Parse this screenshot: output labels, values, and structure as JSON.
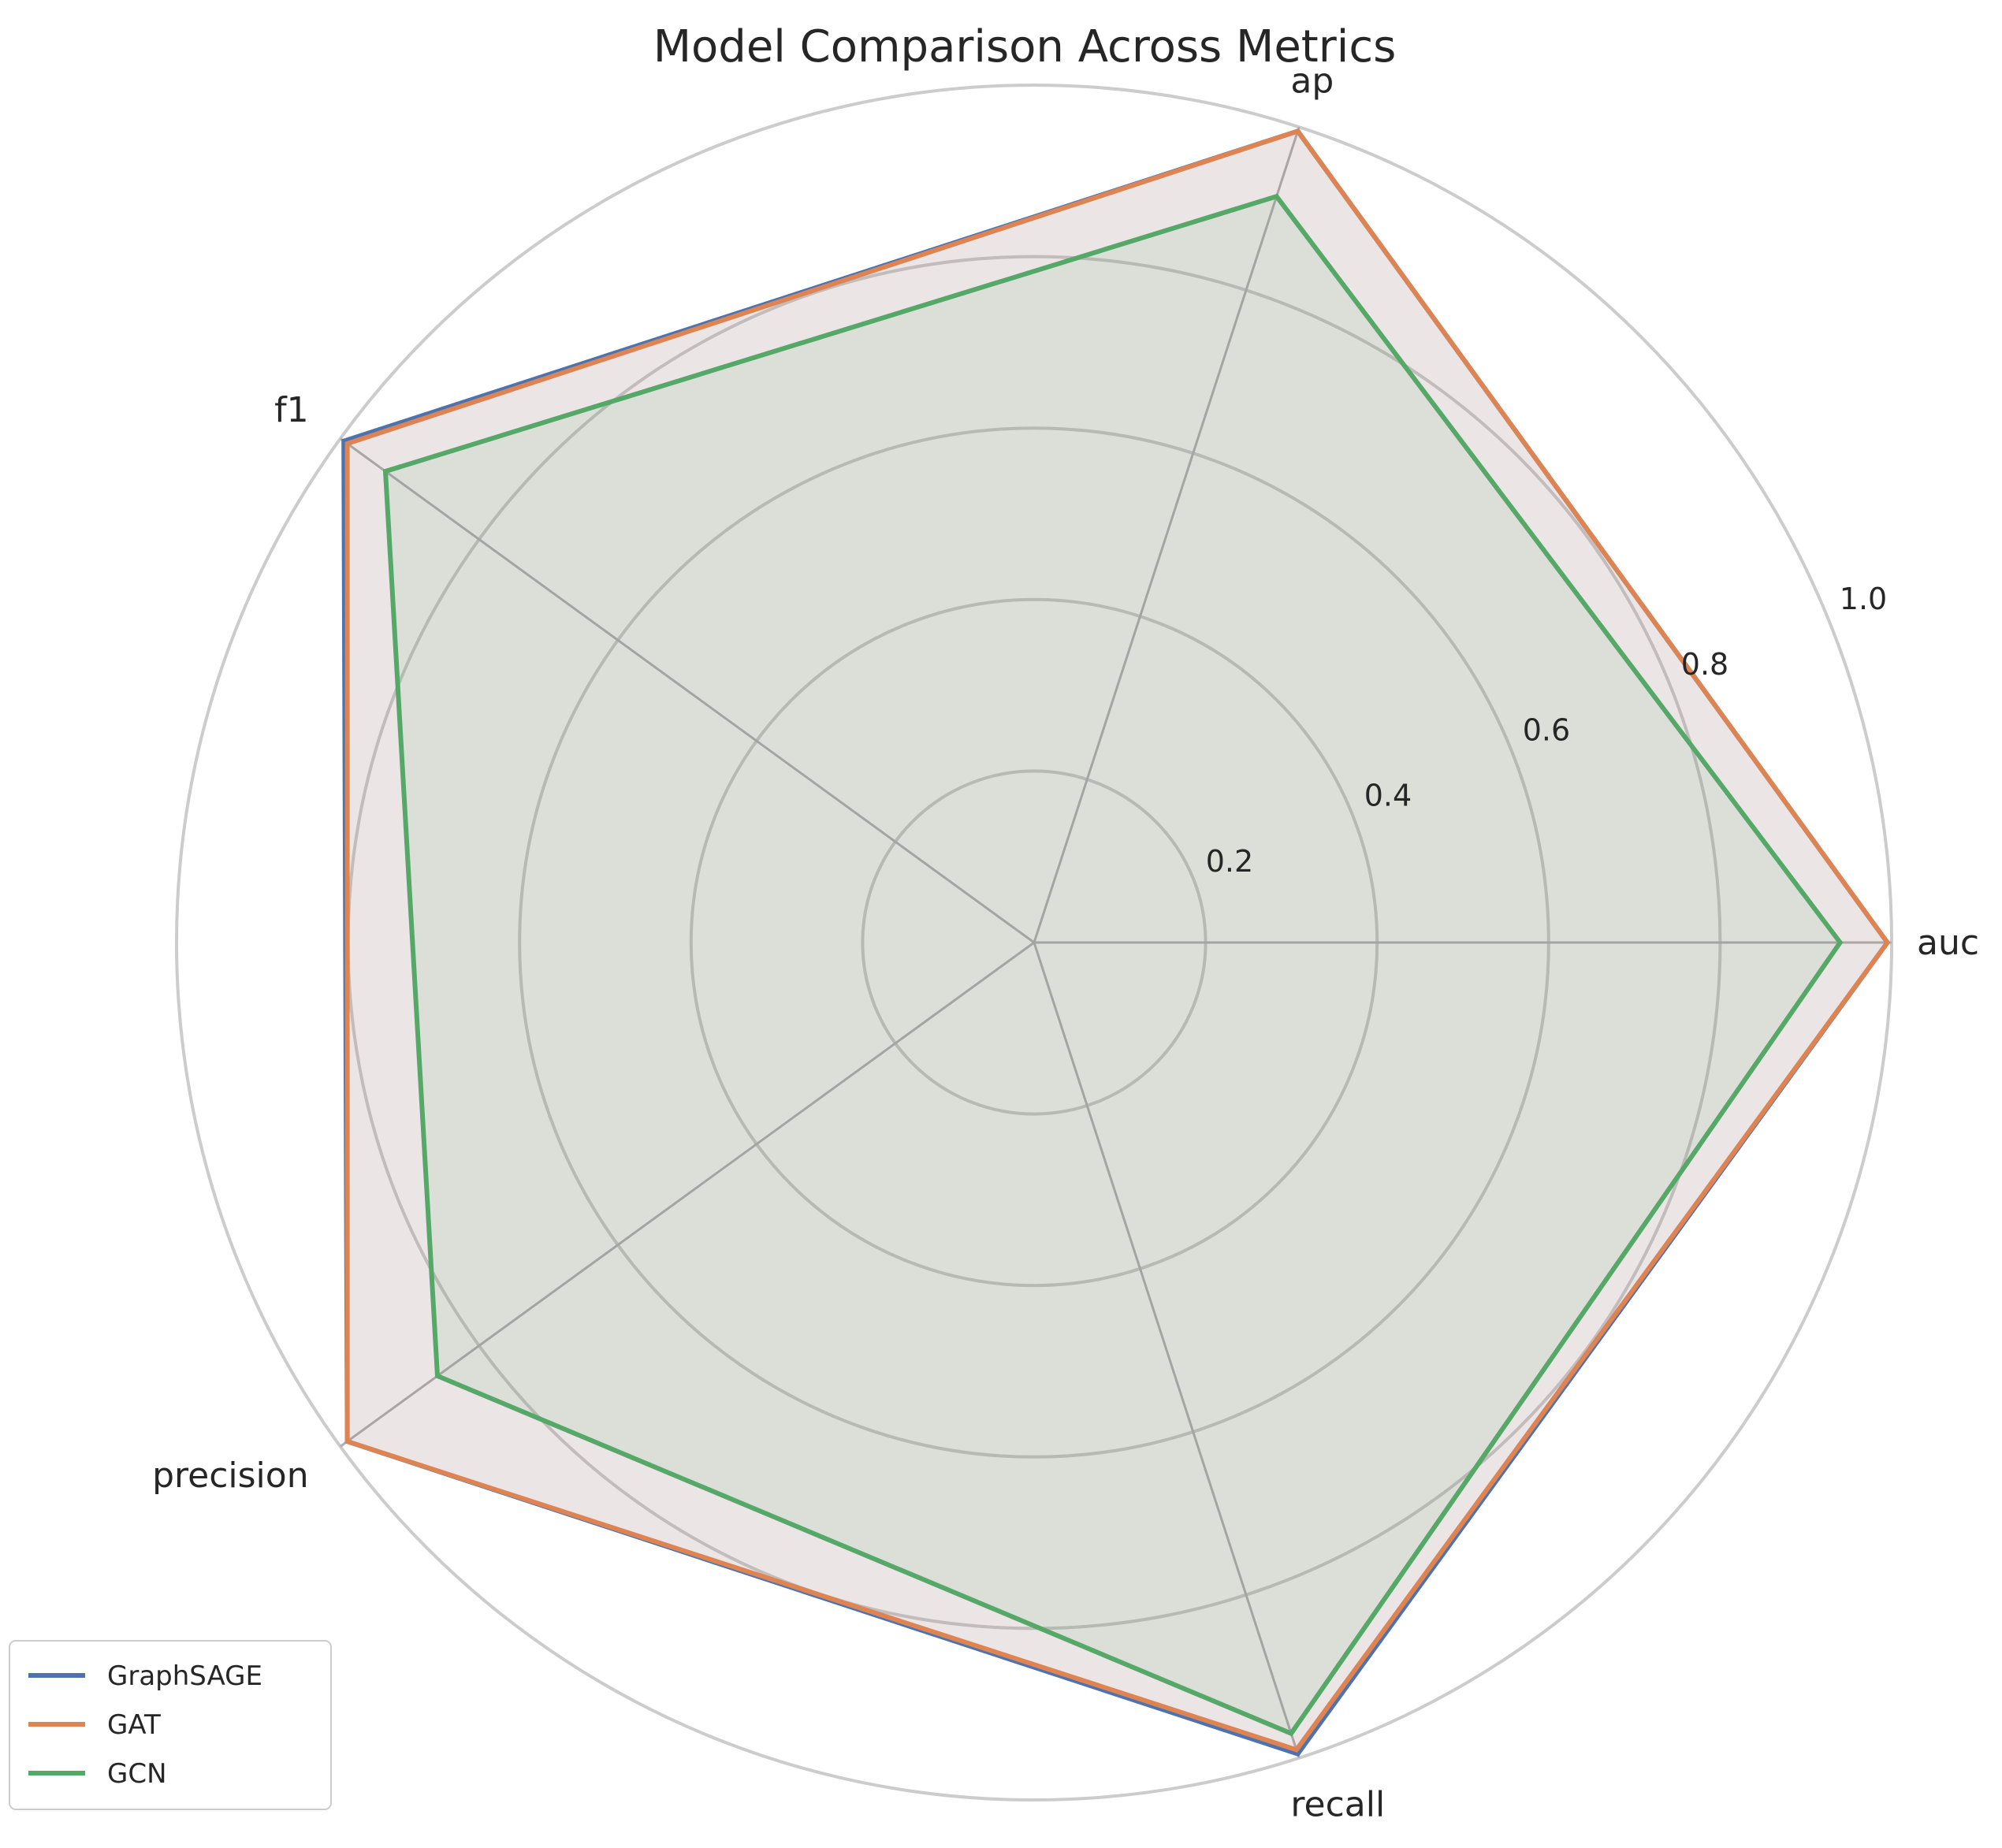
{
  "chart_data": {
    "type": "radar",
    "title": "Model Comparison Across Metrics",
    "categories": [
      "auc",
      "ap",
      "f1",
      "precision",
      "recall"
    ],
    "rlim": [
      0,
      1.0
    ],
    "rticks": [
      0.2,
      0.4,
      0.6,
      0.8,
      1.0
    ],
    "rtick_labels": [
      "0.2",
      "0.4",
      "0.6",
      "0.8",
      "1.0"
    ],
    "grid": true,
    "legend_placement": "lower-left",
    "series": [
      {
        "name": "GraphSAGE",
        "color": "#4c72b0",
        "values": [
          0.995,
          0.995,
          0.995,
          0.99,
          0.995
        ]
      },
      {
        "name": "GAT",
        "color": "#dd8452",
        "values": [
          0.995,
          0.995,
          0.99,
          0.99,
          0.99
        ]
      },
      {
        "name": "GCN",
        "color": "#55a868",
        "values": [
          0.94,
          0.915,
          0.935,
          0.86,
          0.97
        ]
      }
    ]
  }
}
